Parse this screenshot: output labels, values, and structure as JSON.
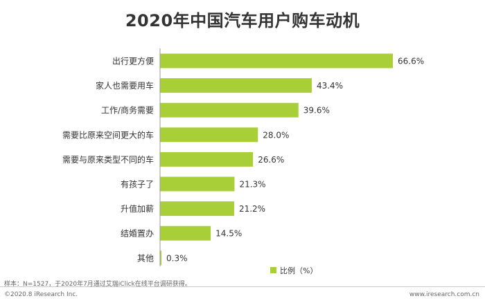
{
  "page": {
    "title": "2020年中国汽车用户购车动机",
    "note": "样本：N=1527，于2020年7月通过艾瑞iClick在线平台调研获得。",
    "copyright": "©2020.8 iResearch Inc.",
    "website": "www.iresearch.com.cn"
  },
  "chart_data": {
    "type": "bar",
    "orientation": "horizontal",
    "title": "2020年中国汽车用户购车动机",
    "categories": [
      "出行更方便",
      "家人也需要用车",
      "工作/商务需要",
      "需要比原来空间更大的车",
      "需要与原来类型不同的车",
      "有孩子了",
      "升值加薪",
      "结婚置办",
      "其他"
    ],
    "values": [
      66.6,
      43.4,
      39.6,
      28.0,
      26.6,
      21.3,
      21.2,
      14.5,
      0.3
    ],
    "value_labels": [
      "66.6%",
      "43.4%",
      "39.6%",
      "28.0%",
      "26.6%",
      "21.3%",
      "21.2%",
      "14.5%",
      "0.3%"
    ],
    "series": [
      {
        "name": "比例（%）",
        "values": [
          66.6,
          43.4,
          39.6,
          28.0,
          26.6,
          21.3,
          21.2,
          14.5,
          0.3
        ]
      }
    ],
    "legend": {
      "label": "比例（%）",
      "position": "bottom-right"
    },
    "xlim": [
      0,
      70
    ],
    "grid": false,
    "colors": {
      "bar": "#a8cf38",
      "axis": "#9a9a9a",
      "text": "#333333"
    }
  }
}
